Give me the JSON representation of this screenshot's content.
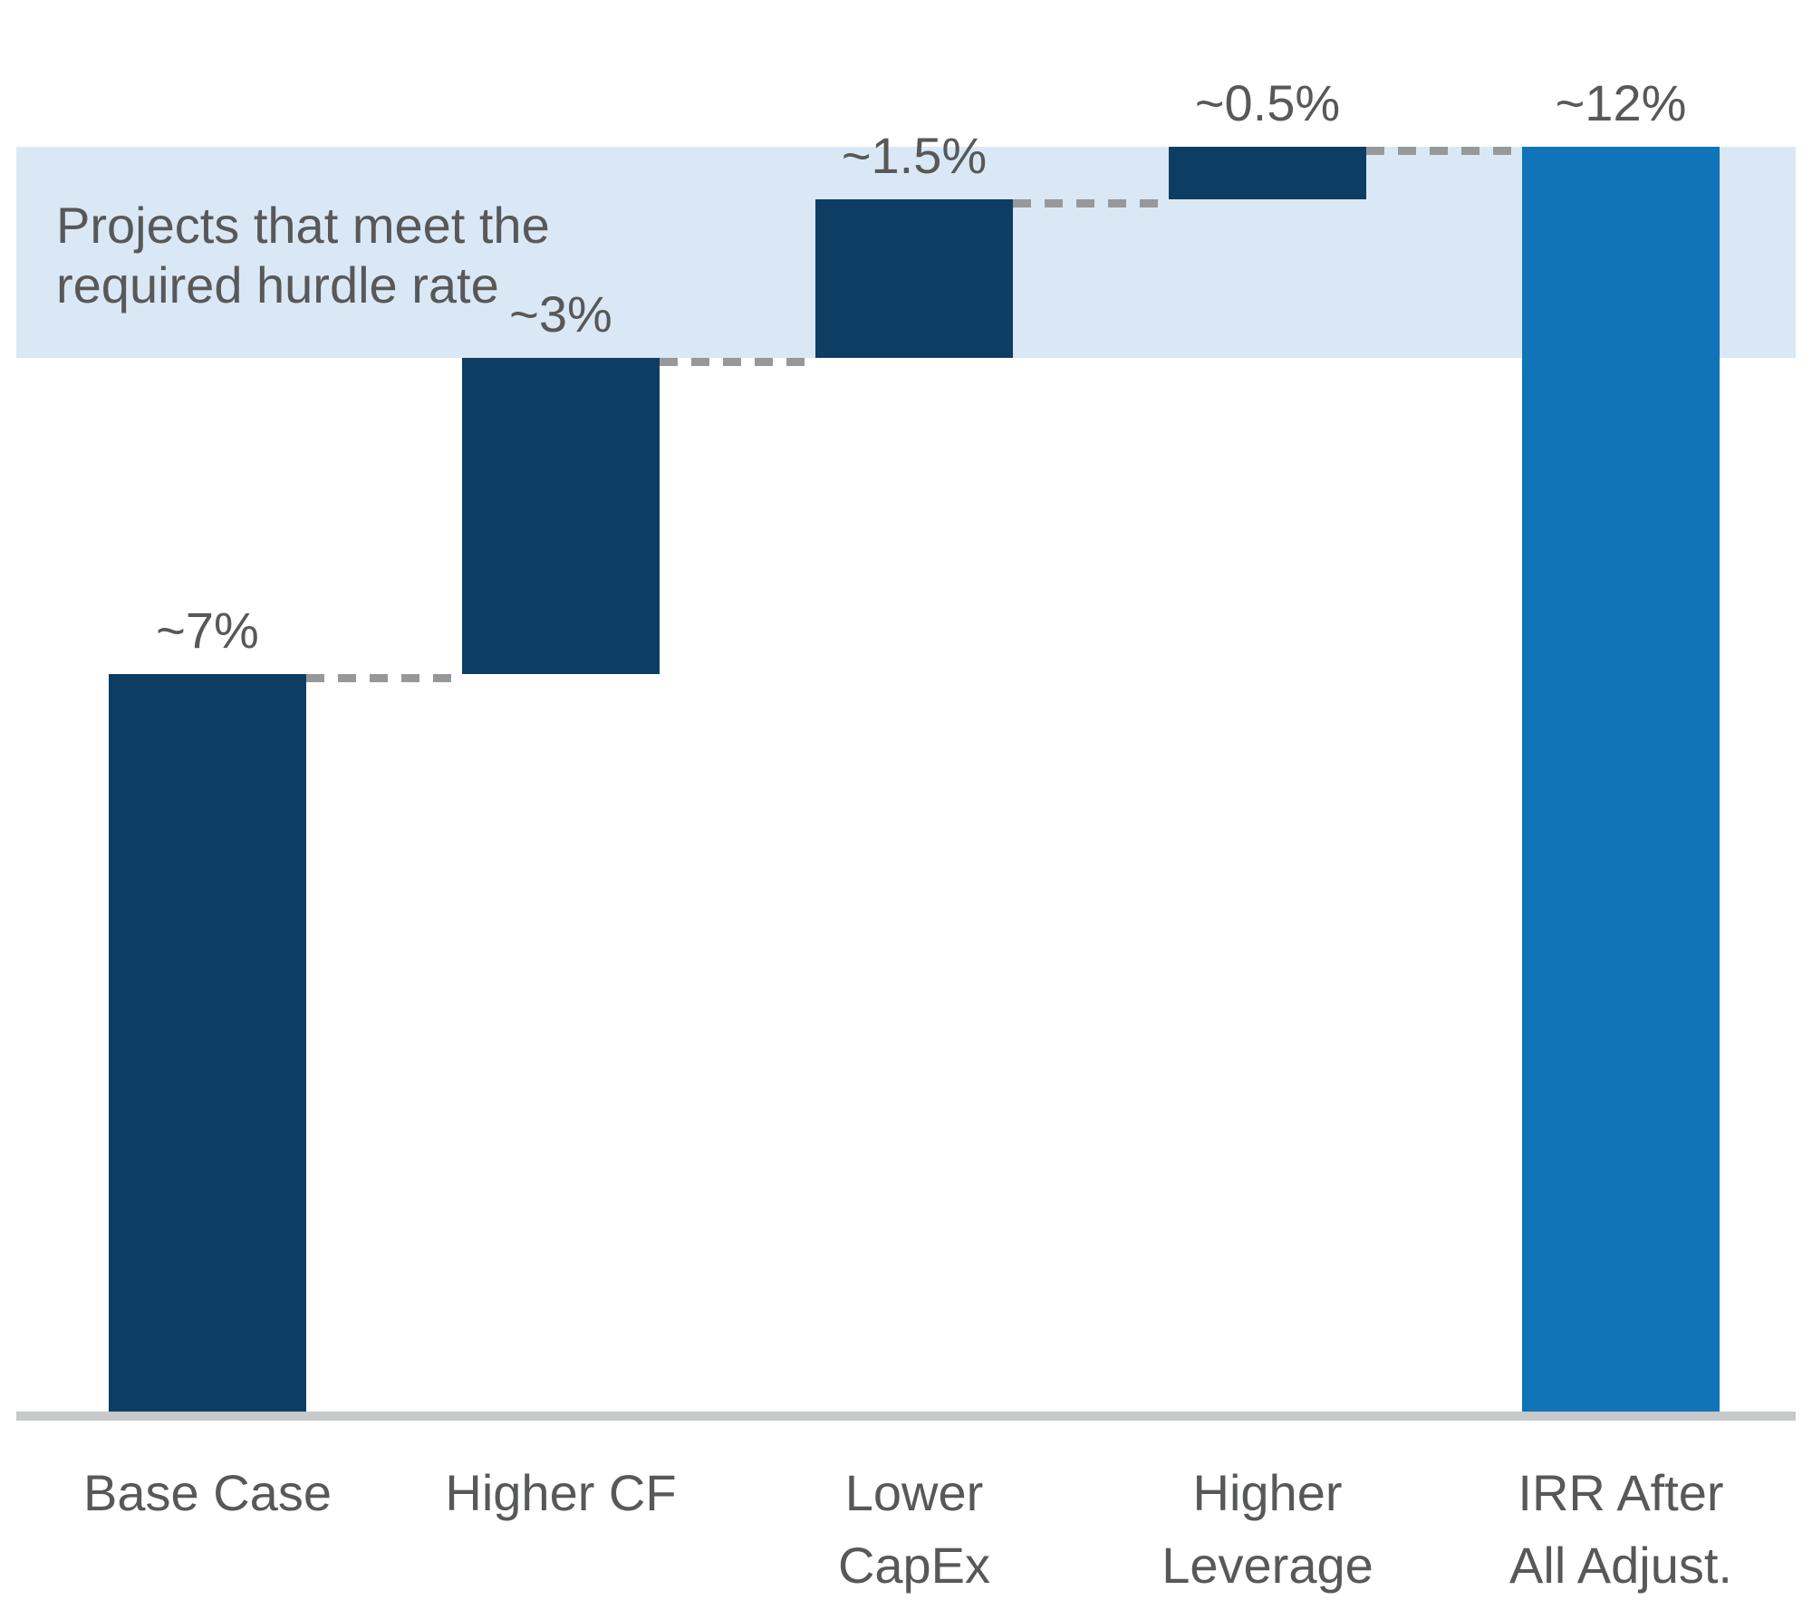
{
  "chart_data": {
    "type": "bar",
    "subtype": "waterfall",
    "title": "",
    "xlabel": "",
    "ylabel": "",
    "unit": "%",
    "gridlines": false,
    "legend": "none",
    "ylim": [
      0,
      12
    ],
    "categories": [
      "Base Case",
      "Higher CF",
      "Lower\nCapEx",
      "Higher\nLeverage",
      "IRR After\nAll Adjust."
    ],
    "values": [
      7,
      3,
      1.5,
      0.5,
      12
    ],
    "steps": [
      {
        "label": "Base Case",
        "value_label": "~7%",
        "start": 0,
        "end": 7,
        "role": "increase"
      },
      {
        "label": "Higher CF",
        "value_label": "~3%",
        "start": 7,
        "end": 10,
        "role": "increase"
      },
      {
        "label": "Lower\nCapEx",
        "value_label": "~1.5%",
        "start": 10,
        "end": 11.5,
        "role": "increase"
      },
      {
        "label": "Higher\nLeverage",
        "value_label": "~0.5%",
        "start": 11.5,
        "end": 12,
        "role": "increase"
      },
      {
        "label": "IRR After\nAll Adjust.",
        "value_label": "~12%",
        "start": 0,
        "end": 12,
        "role": "total"
      }
    ],
    "hurdle_band": {
      "label": "Projects that meet the\nrequired hurdle rate",
      "from": 10,
      "to": 12
    },
    "colors": {
      "increase": "#0e3d64",
      "total": "#0f74b8",
      "band": "#d9e8f4",
      "text": "#57585a",
      "connector": "#97989a",
      "baseline": "#c7c8c9",
      "background": "#ffffff"
    }
  }
}
